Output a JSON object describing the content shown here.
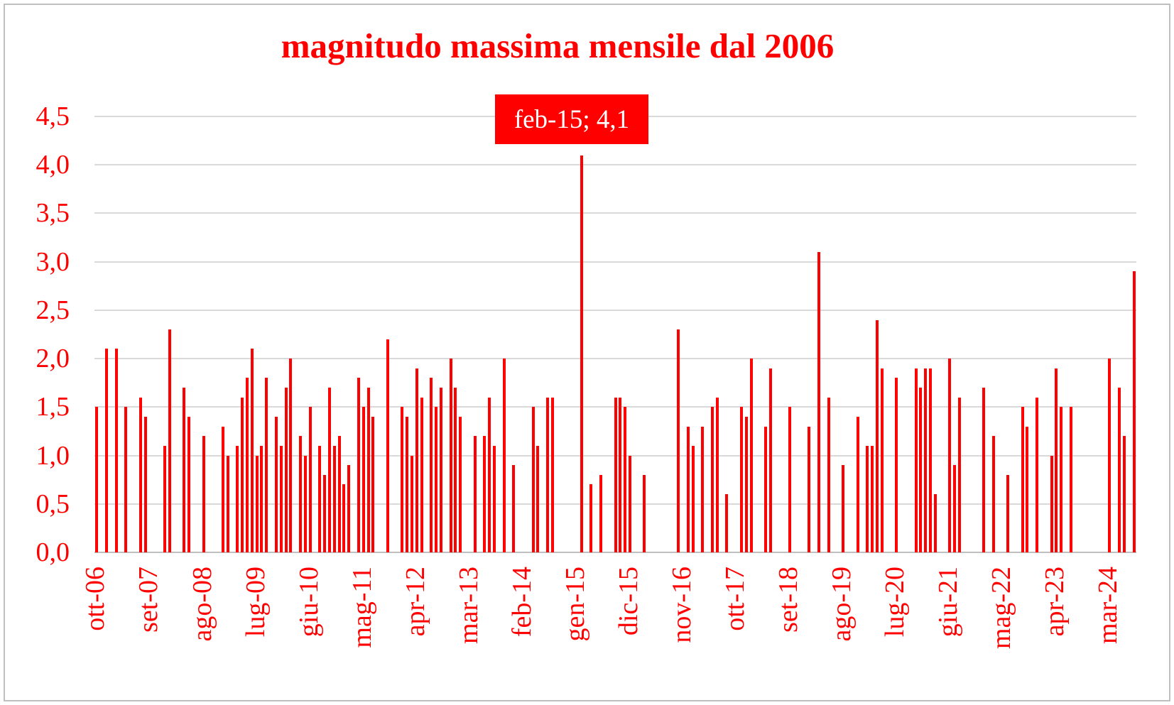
{
  "title": "magnitudo massima mensile dal 2006",
  "colors": {
    "accent_red": "#ff0000",
    "text_red": "#ff0000",
    "gridline": "#d9d9d9",
    "axis_line": "#bfbfbf",
    "border": "#bfbfbf",
    "annotation_bg": "#ff0000",
    "annotation_text": "#ffffff",
    "background": "#ffffff"
  },
  "chart_data": {
    "type": "bar",
    "title": "magnitudo massima mensile dal 2006",
    "xlabel": "",
    "ylabel": "",
    "grid": "horizontal",
    "legend": "none",
    "y_axis": {
      "min": 0.0,
      "max": 4.5,
      "step": 0.5,
      "tick_labels": [
        "0,0",
        "0,5",
        "1,0",
        "1,5",
        "2,0",
        "2,5",
        "3,0",
        "3,5",
        "4,0",
        "4,5"
      ]
    },
    "x_axis": {
      "n_categories": 215,
      "first_category": "ott-06",
      "last_category": "ago-24",
      "tick_interval": 11,
      "ticks": [
        {
          "i": 0,
          "label": "ott-06"
        },
        {
          "i": 11,
          "label": "set-07"
        },
        {
          "i": 22,
          "label": "ago-08"
        },
        {
          "i": 33,
          "label": "lug-09"
        },
        {
          "i": 44,
          "label": "giu-10"
        },
        {
          "i": 55,
          "label": "mag-11"
        },
        {
          "i": 66,
          "label": "apr-12"
        },
        {
          "i": 77,
          "label": "mar-13"
        },
        {
          "i": 88,
          "label": "feb-14"
        },
        {
          "i": 99,
          "label": "gen-15"
        },
        {
          "i": 110,
          "label": "dic-15"
        },
        {
          "i": 121,
          "label": "nov-16"
        },
        {
          "i": 132,
          "label": "ott-17"
        },
        {
          "i": 143,
          "label": "set-18"
        },
        {
          "i": 154,
          "label": "ago-19"
        },
        {
          "i": 165,
          "label": "lug-20"
        },
        {
          "i": 176,
          "label": "giu-21"
        },
        {
          "i": 187,
          "label": "mag-22"
        },
        {
          "i": 198,
          "label": "apr-23"
        },
        {
          "i": 209,
          "label": "mar-24"
        }
      ]
    },
    "annotation": {
      "label": "feb-15; 4,1",
      "category": "feb-15",
      "value": 4.1
    },
    "points": [
      {
        "i": 0,
        "m": "ott-06",
        "v": 1.5
      },
      {
        "i": 2,
        "m": "dic-06",
        "v": 2.1
      },
      {
        "i": 4,
        "m": "feb-07",
        "v": 2.1
      },
      {
        "i": 6,
        "m": "apr-07",
        "v": 1.5
      },
      {
        "i": 9,
        "m": "lug-07",
        "v": 1.6
      },
      {
        "i": 10,
        "m": "ago-07",
        "v": 1.4
      },
      {
        "i": 14,
        "m": "dic-07",
        "v": 1.1
      },
      {
        "i": 15,
        "m": "gen-08",
        "v": 2.3
      },
      {
        "i": 18,
        "m": "apr-08",
        "v": 1.7
      },
      {
        "i": 19,
        "m": "mag-08",
        "v": 1.4
      },
      {
        "i": 22,
        "m": "ago-08",
        "v": 1.2
      },
      {
        "i": 26,
        "m": "dic-08",
        "v": 1.3
      },
      {
        "i": 27,
        "m": "gen-09",
        "v": 1.0
      },
      {
        "i": 29,
        "m": "mar-09",
        "v": 1.1
      },
      {
        "i": 30,
        "m": "apr-09",
        "v": 1.6
      },
      {
        "i": 31,
        "m": "mag-09",
        "v": 1.8
      },
      {
        "i": 32,
        "m": "giu-09",
        "v": 2.1
      },
      {
        "i": 33,
        "m": "lug-09",
        "v": 1.0
      },
      {
        "i": 34,
        "m": "ago-09",
        "v": 1.1
      },
      {
        "i": 35,
        "m": "set-09",
        "v": 1.8
      },
      {
        "i": 37,
        "m": "nov-09",
        "v": 1.4
      },
      {
        "i": 38,
        "m": "dic-09",
        "v": 1.1
      },
      {
        "i": 39,
        "m": "gen-10",
        "v": 1.7
      },
      {
        "i": 40,
        "m": "feb-10",
        "v": 2.0
      },
      {
        "i": 42,
        "m": "apr-10",
        "v": 1.2
      },
      {
        "i": 43,
        "m": "mag-10",
        "v": 1.0
      },
      {
        "i": 44,
        "m": "giu-10",
        "v": 1.5
      },
      {
        "i": 46,
        "m": "ago-10",
        "v": 1.1
      },
      {
        "i": 47,
        "m": "set-10",
        "v": 0.8
      },
      {
        "i": 48,
        "m": "ott-10",
        "v": 1.7
      },
      {
        "i": 49,
        "m": "nov-10",
        "v": 1.1
      },
      {
        "i": 50,
        "m": "dic-10",
        "v": 1.2
      },
      {
        "i": 51,
        "m": "gen-11",
        "v": 0.7
      },
      {
        "i": 52,
        "m": "feb-11",
        "v": 0.9
      },
      {
        "i": 54,
        "m": "apr-11",
        "v": 1.8
      },
      {
        "i": 55,
        "m": "mag-11",
        "v": 1.5
      },
      {
        "i": 56,
        "m": "giu-11",
        "v": 1.7
      },
      {
        "i": 57,
        "m": "lug-11",
        "v": 1.4
      },
      {
        "i": 60,
        "m": "ott-11",
        "v": 2.2
      },
      {
        "i": 63,
        "m": "gen-12",
        "v": 1.5
      },
      {
        "i": 64,
        "m": "feb-12",
        "v": 1.4
      },
      {
        "i": 65,
        "m": "mar-12",
        "v": 1.0
      },
      {
        "i": 66,
        "m": "apr-12",
        "v": 1.9
      },
      {
        "i": 67,
        "m": "mag-12",
        "v": 1.6
      },
      {
        "i": 69,
        "m": "lug-12",
        "v": 1.8
      },
      {
        "i": 70,
        "m": "ago-12",
        "v": 1.5
      },
      {
        "i": 71,
        "m": "set-12",
        "v": 1.7
      },
      {
        "i": 73,
        "m": "nov-12",
        "v": 2.0
      },
      {
        "i": 74,
        "m": "dic-12",
        "v": 1.7
      },
      {
        "i": 75,
        "m": "gen-13",
        "v": 1.4
      },
      {
        "i": 78,
        "m": "apr-13",
        "v": 1.2
      },
      {
        "i": 80,
        "m": "giu-13",
        "v": 1.2
      },
      {
        "i": 81,
        "m": "lug-13",
        "v": 1.6
      },
      {
        "i": 82,
        "m": "ago-13",
        "v": 1.1
      },
      {
        "i": 84,
        "m": "ott-13",
        "v": 2.0
      },
      {
        "i": 86,
        "m": "dic-13",
        "v": 0.9
      },
      {
        "i": 90,
        "m": "apr-14",
        "v": 1.5
      },
      {
        "i": 91,
        "m": "mag-14",
        "v": 1.1
      },
      {
        "i": 93,
        "m": "lug-14",
        "v": 1.6
      },
      {
        "i": 94,
        "m": "ago-14",
        "v": 1.6
      },
      {
        "i": 100,
        "m": "feb-15",
        "v": 4.1
      },
      {
        "i": 102,
        "m": "apr-15",
        "v": 0.7
      },
      {
        "i": 104,
        "m": "giu-15",
        "v": 0.8
      },
      {
        "i": 107,
        "m": "set-15",
        "v": 1.6
      },
      {
        "i": 108,
        "m": "ott-15",
        "v": 1.6
      },
      {
        "i": 109,
        "m": "nov-15",
        "v": 1.5
      },
      {
        "i": 110,
        "m": "dic-15",
        "v": 1.0
      },
      {
        "i": 113,
        "m": "mar-16",
        "v": 0.8
      },
      {
        "i": 120,
        "m": "ott-16",
        "v": 2.3
      },
      {
        "i": 122,
        "m": "dic-16",
        "v": 1.3
      },
      {
        "i": 123,
        "m": "gen-17",
        "v": 1.1
      },
      {
        "i": 125,
        "m": "mar-17",
        "v": 1.3
      },
      {
        "i": 127,
        "m": "mag-17",
        "v": 1.5
      },
      {
        "i": 128,
        "m": "giu-17",
        "v": 1.6
      },
      {
        "i": 130,
        "m": "ago-17",
        "v": 0.6
      },
      {
        "i": 133,
        "m": "nov-17",
        "v": 1.5
      },
      {
        "i": 134,
        "m": "dic-17",
        "v": 1.4
      },
      {
        "i": 135,
        "m": "gen-18",
        "v": 2.0
      },
      {
        "i": 138,
        "m": "apr-18",
        "v": 1.3
      },
      {
        "i": 139,
        "m": "mag-18",
        "v": 1.9
      },
      {
        "i": 143,
        "m": "set-18",
        "v": 1.5
      },
      {
        "i": 147,
        "m": "gen-19",
        "v": 1.3
      },
      {
        "i": 149,
        "m": "mar-19",
        "v": 3.1
      },
      {
        "i": 151,
        "m": "mag-19",
        "v": 1.6
      },
      {
        "i": 154,
        "m": "ago-19",
        "v": 0.9
      },
      {
        "i": 157,
        "m": "nov-19",
        "v": 1.4
      },
      {
        "i": 159,
        "m": "gen-20",
        "v": 1.1
      },
      {
        "i": 160,
        "m": "feb-20",
        "v": 1.1
      },
      {
        "i": 161,
        "m": "mar-20",
        "v": 2.4
      },
      {
        "i": 162,
        "m": "apr-20",
        "v": 1.9
      },
      {
        "i": 165,
        "m": "lug-20",
        "v": 1.8
      },
      {
        "i": 169,
        "m": "nov-20",
        "v": 1.9
      },
      {
        "i": 170,
        "m": "dic-20",
        "v": 1.7
      },
      {
        "i": 171,
        "m": "gen-21",
        "v": 1.9
      },
      {
        "i": 172,
        "m": "feb-21",
        "v": 1.9
      },
      {
        "i": 173,
        "m": "mar-21",
        "v": 0.6
      },
      {
        "i": 176,
        "m": "giu-21",
        "v": 2.0
      },
      {
        "i": 177,
        "m": "lug-21",
        "v": 0.9
      },
      {
        "i": 178,
        "m": "ago-21",
        "v": 1.6
      },
      {
        "i": 183,
        "m": "gen-22",
        "v": 1.7
      },
      {
        "i": 185,
        "m": "mar-22",
        "v": 1.2
      },
      {
        "i": 188,
        "m": "giu-22",
        "v": 0.8
      },
      {
        "i": 191,
        "m": "set-22",
        "v": 1.5
      },
      {
        "i": 192,
        "m": "ott-22",
        "v": 1.3
      },
      {
        "i": 194,
        "m": "dic-22",
        "v": 1.6
      },
      {
        "i": 197,
        "m": "mar-23",
        "v": 1.0
      },
      {
        "i": 198,
        "m": "apr-23",
        "v": 1.9
      },
      {
        "i": 199,
        "m": "mag-23",
        "v": 1.5
      },
      {
        "i": 201,
        "m": "lug-23",
        "v": 1.5
      },
      {
        "i": 209,
        "m": "mar-24",
        "v": 2.0
      },
      {
        "i": 211,
        "m": "mag-24",
        "v": 1.7
      },
      {
        "i": 212,
        "m": "giu-24",
        "v": 1.2
      },
      {
        "i": 214,
        "m": "ago-24",
        "v": 2.9
      }
    ]
  }
}
